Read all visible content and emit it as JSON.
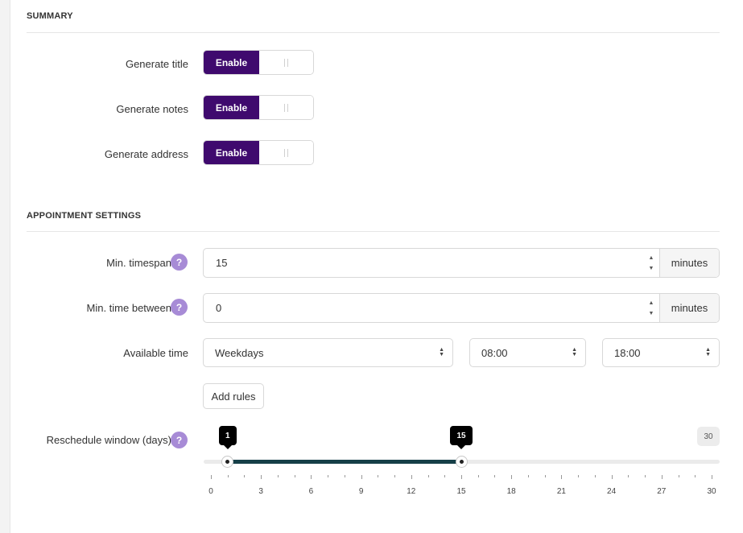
{
  "summary": {
    "title": "SUMMARY",
    "rows": [
      {
        "label": "Generate title",
        "toggle": "Enable"
      },
      {
        "label": "Generate notes",
        "toggle": "Enable"
      },
      {
        "label": "Generate address",
        "toggle": "Enable"
      }
    ]
  },
  "appointment": {
    "title": "APPOINTMENT SETTINGS",
    "min_timespan": {
      "label": "Min. timespan",
      "value": "15",
      "unit": "minutes"
    },
    "min_time_between": {
      "label": "Min. time between",
      "value": "0",
      "unit": "minutes"
    },
    "available_time": {
      "label": "Available time",
      "days": "Weekdays",
      "start": "08:00",
      "end": "18:00"
    },
    "add_rules": "Add rules",
    "reschedule": {
      "label": "Reschedule window (days)",
      "min": 0,
      "max": 30,
      "low": 1,
      "high": 15,
      "low_label": "1",
      "high_label": "15",
      "max_label": "30",
      "tick_labels": [
        "0",
        "3",
        "6",
        "9",
        "12",
        "15",
        "18",
        "21",
        "24",
        "27",
        "30"
      ]
    }
  },
  "help_icon": "?",
  "colors": {
    "accent": "#3f0a6e",
    "range": "#163f48",
    "help": "#a78bd6"
  }
}
